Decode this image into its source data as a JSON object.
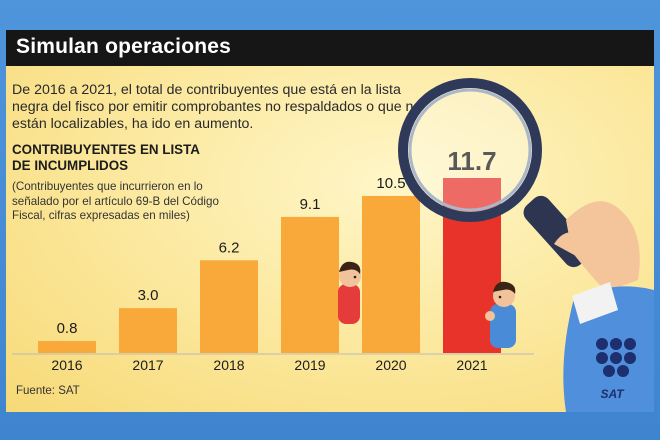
{
  "header": {
    "title": "Simulan operaciones"
  },
  "intro": "De 2016 a 2021, el total de contribuyentes que está en la lista negra del fisco por emitir comprobantes no respaldados o que no están localizables, ha ido en aumento.",
  "chart_data": {
    "type": "bar",
    "title": "CONTRIBUYENTES EN LISTA DE INCUMPLIDOS",
    "subtitle": "(Contribuyentes que incurrieron en lo señalado por el artículo 69-B del Código Fiscal, cifras expresadas en miles)",
    "categories": [
      "2016",
      "2017",
      "2018",
      "2019",
      "2020",
      "2021"
    ],
    "values": [
      0.8,
      3.0,
      6.2,
      9.1,
      10.5,
      11.7
    ],
    "value_labels": [
      "0.8",
      "3.0",
      "6.2",
      "9.1",
      "10.5",
      "11.7"
    ],
    "colors": {
      "bar": "#f9a83a",
      "highlight": "#e8332a",
      "highlight_index": 5
    },
    "ylim": [
      0,
      11.7
    ],
    "grid": false,
    "legend": "none"
  },
  "source": "Fuente: SAT",
  "logo": {
    "text": "SAT",
    "color": "#1d2f6e"
  },
  "icons": [
    "magnifying-glass-icon",
    "hand-icon",
    "peeking-person-icon",
    "sat-logo-icon"
  ]
}
